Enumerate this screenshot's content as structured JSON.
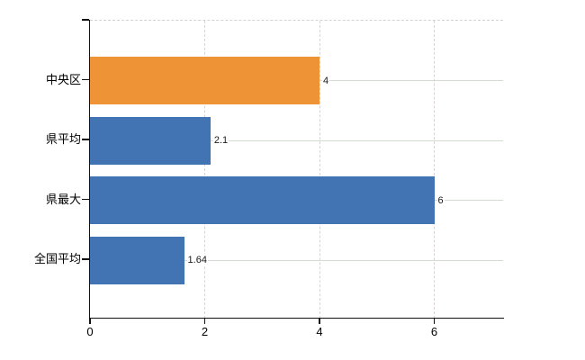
{
  "chart_data": {
    "type": "bar",
    "orientation": "horizontal",
    "categories": [
      "中央区",
      "県平均",
      "県最大",
      "全国平均"
    ],
    "values": [
      4,
      2.1,
      6,
      1.64
    ],
    "value_labels": [
      "4",
      "2.1",
      "6",
      "1.64"
    ],
    "bar_colors": [
      "#EE9336",
      "#4274B4",
      "#4274B4",
      "#4274B4"
    ],
    "xlim": [
      0,
      7.2
    ],
    "xticks": [
      0,
      2,
      4,
      6
    ],
    "xtick_labels": [
      "0",
      "2",
      "4",
      "6"
    ],
    "grid": true,
    "legend": "none",
    "title": ""
  },
  "colors": {
    "axis": "#111111",
    "grid_horizontal": "#d4dbd1",
    "grid_vertical_dashed": "#d8d2d4",
    "top_border_dashed": "#d6d0d2",
    "bar_blue": "#4274B4",
    "bar_orange": "#EE9336",
    "value_label_text": "#1a1a1a",
    "category_label_text": "#000000"
  }
}
